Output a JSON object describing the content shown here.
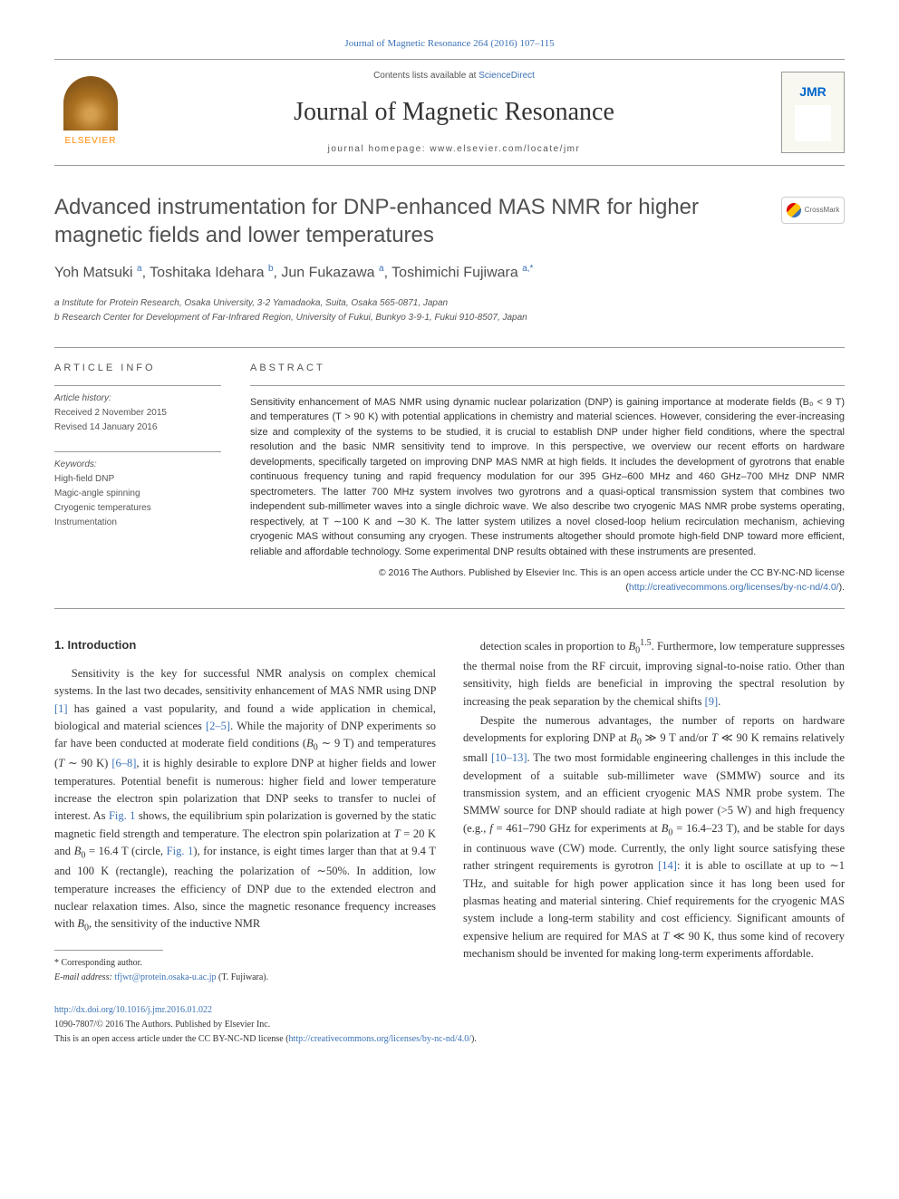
{
  "header": {
    "citation": "Journal of Magnetic Resonance 264 (2016) 107–115",
    "contents_prefix": "Contents lists available at ",
    "contents_link": "ScienceDirect",
    "journal_title": "Journal of Magnetic Resonance",
    "homepage_label": "journal homepage: www.elsevier.com/locate/jmr",
    "publisher": "ELSEVIER",
    "cover_abbrev": "JMR"
  },
  "crossmark": "CrossMark",
  "article": {
    "title": "Advanced instrumentation for DNP-enhanced MAS NMR for higher magnetic fields and lower temperatures",
    "authors_html": "Yoh Matsuki <sup>a</sup>, Toshitaka Idehara <sup>b</sup>, Jun Fukazawa <sup>a</sup>, Toshimichi Fujiwara <sup>a,*</sup>",
    "affiliations": [
      "a Institute for Protein Research, Osaka University, 3-2 Yamadaoka, Suita, Osaka 565-0871, Japan",
      "b Research Center for Development of Far-Infrared Region, University of Fukui, Bunkyo 3-9-1, Fukui 910-8507, Japan"
    ]
  },
  "info": {
    "section_label": "ARTICLE INFO",
    "history_label": "Article history:",
    "received": "Received 2 November 2015",
    "revised": "Revised 14 January 2016",
    "keywords_label": "Keywords:",
    "keywords": [
      "High-field DNP",
      "Magic-angle spinning",
      "Cryogenic temperatures",
      "Instrumentation"
    ]
  },
  "abstract": {
    "section_label": "ABSTRACT",
    "text": "Sensitivity enhancement of MAS NMR using dynamic nuclear polarization (DNP) is gaining importance at moderate fields (B₀ < 9 T) and temperatures (T > 90 K) with potential applications in chemistry and material sciences. However, considering the ever-increasing size and complexity of the systems to be studied, it is crucial to establish DNP under higher field conditions, where the spectral resolution and the basic NMR sensitivity tend to improve. In this perspective, we overview our recent efforts on hardware developments, specifically targeted on improving DNP MAS NMR at high fields. It includes the development of gyrotrons that enable continuous frequency tuning and rapid frequency modulation for our 395 GHz–600 MHz and 460 GHz–700 MHz DNP NMR spectrometers. The latter 700 MHz system involves two gyrotrons and a quasi-optical transmission system that combines two independent sub-millimeter waves into a single dichroic wave. We also describe two cryogenic MAS NMR probe systems operating, respectively, at T ∼100 K and ∼30 K. The latter system utilizes a novel closed-loop helium recirculation mechanism, achieving cryogenic MAS without consuming any cryogen. These instruments altogether should promote high-field DNP toward more efficient, reliable and affordable technology. Some experimental DNP results obtained with these instruments are presented.",
    "copyright": "© 2016 The Authors. Published by Elsevier Inc. This is an open access article under the CC BY-NC-ND license (",
    "license_url": "http://creativecommons.org/licenses/by-nc-nd/4.0/",
    "copyright_close": ")."
  },
  "body": {
    "heading": "1. Introduction",
    "left_col": [
      "Sensitivity is the key for successful NMR analysis on complex chemical systems. In the last two decades, sensitivity enhancement of MAS NMR using DNP [1] has gained a vast popularity, and found a wide application in chemical, biological and material sciences [2–5]. While the majority of DNP experiments so far have been conducted at moderate field conditions (B₀ ∼ 9 T) and temperatures (T ∼ 90 K) [6–8], it is highly desirable to explore DNP at higher fields and lower temperatures. Potential benefit is numerous: higher field and lower temperature increase the electron spin polarization that DNP seeks to transfer to nuclei of interest. As Fig. 1 shows, the equilibrium spin polarization is governed by the static magnetic field strength and temperature. The electron spin polarization at T = 20 K and B₀ = 16.4 T (circle, Fig. 1), for instance, is eight times larger than that at 9.4 T and 100 K (rectangle), reaching the polarization of ∼50%. In addition, low temperature increases the efficiency of DNP due to the extended electron and nuclear relaxation times. Also, since the magnetic resonance frequency increases with B₀, the sensitivity of the inductive NMR"
    ],
    "right_col": [
      "detection scales in proportion to B₀^1.5. Furthermore, low temperature suppresses the thermal noise from the RF circuit, improving signal-to-noise ratio. Other than sensitivity, high fields are beneficial in improving the spectral resolution by increasing the peak separation by the chemical shifts [9].",
      "Despite the numerous advantages, the number of reports on hardware developments for exploring DNP at B₀ ≫ 9 T and/or T ≪ 90 K remains relatively small [10–13]. The two most formidable engineering challenges in this include the development of a suitable sub-millimeter wave (SMMW) source and its transmission system, and an efficient cryogenic MAS NMR probe system. The SMMW source for DNP should radiate at high power (>5 W) and high frequency (e.g., f = 461–790 GHz for experiments at B₀ = 16.4–23 T), and be stable for days in continuous wave (CW) mode. Currently, the only light source satisfying these rather stringent requirements is gyrotron [14]: it is able to oscillate at up to ∼1 THz, and suitable for high power application since it has long been used for plasmas heating and material sintering. Chief requirements for the cryogenic MAS system include a long-term stability and cost efficiency. Significant amounts of expensive helium are required for MAS at T ≪ 90 K, thus some kind of recovery mechanism should be invented for making long-term experiments affordable."
    ],
    "ref_links": [
      "[1]",
      "[2–5]",
      "[6–8]",
      "Fig. 1",
      "Fig. 1",
      "[9]",
      "[10–13]",
      "[14]"
    ]
  },
  "footnote": {
    "corresponding": "* Corresponding author.",
    "email_label": "E-mail address: ",
    "email": "tfjwr@protein.osaka-u.ac.jp",
    "email_suffix": " (T. Fujiwara)."
  },
  "footer": {
    "doi": "http://dx.doi.org/10.1016/j.jmr.2016.01.022",
    "issn_line": "1090-7807/© 2016 The Authors. Published by Elsevier Inc.",
    "oa_line": "This is an open access article under the CC BY-NC-ND license (",
    "license_url": "http://creativecommons.org/licenses/by-nc-nd/4.0/",
    "oa_close": ")."
  },
  "colors": {
    "link": "#3b72b5",
    "text": "#333333",
    "heading": "#505050",
    "border": "#999999"
  },
  "typography": {
    "body_font": "Georgia, 'Times New Roman', serif",
    "ui_font": "Arial, sans-serif",
    "title_size_pt": 24,
    "body_size_pt": 12.5,
    "abstract_size_pt": 11,
    "footnote_size_pt": 10
  }
}
